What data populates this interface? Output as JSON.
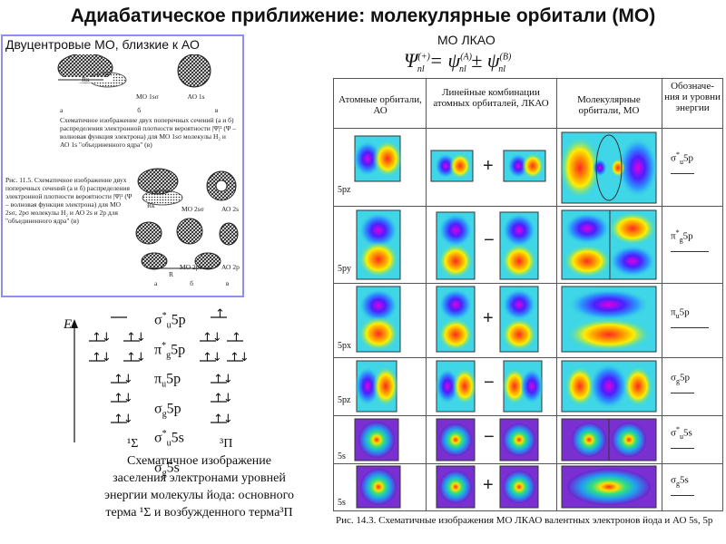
{
  "title": "Адиабатическое приближение: молекулярные орбитали (МО)",
  "formula_label": "МО ЛКАО",
  "formula": {
    "lhs": "Ψ",
    "lhs_sup": "(+)",
    "lhs_sub": "nl",
    "eq": " = ",
    "t1": "ψ",
    "t1_sup": "(A)",
    "t1_sub": "nl",
    "pm": " ± ",
    "t2": "ψ",
    "t2_sup": "(B)",
    "t2_sub": "nl"
  },
  "left_box": {
    "title": "Двуцентровые МО, близкие к АО",
    "fig1_labels": [
      "МО 1sσ",
      "АО 1s"
    ],
    "fig1_letters": [
      "а",
      "б",
      "в"
    ],
    "fig1_caption": "Схематичное изображение двух поперечных сечений (а и б) распределения электронной плотности вероятности |Ψ|² (Ψ – волновая функция электрона) для МО 1sσ молекулы H₂ и АО 1s \"объединенного ядра\" (в)",
    "fig2_caption": "Рис. 11.5. Схематичное изображение двух поперечных сечений (а и б) распределения электронной плотности вероятности |Ψ|² (Ψ – волновая функция электрона) для МО 2sσ, 2pσ молекулы H₂ и АО 2s и 2p для \"объединенного ядра\" (в)",
    "fig2_labels": [
      "МО 2sσ",
      "АО 2s",
      "МО 2pσ",
      "АО 2p"
    ],
    "fig2_letters": [
      "а",
      "б",
      "в"
    ],
    "rk1": "Rк",
    "rk2": "Rк",
    "r": "R"
  },
  "energy_diagram": {
    "axis_label": "E",
    "levels": [
      "σu*5p",
      "πg*5p",
      "πu5p",
      "σg5p",
      "σu*5s",
      "σg5s"
    ],
    "levels_display": [
      {
        "main": "σ",
        "sup": "*",
        "sub": "u",
        "rest": "5p"
      },
      {
        "main": "π",
        "sup": "*",
        "sub": "g",
        "rest": "5p"
      },
      {
        "main": "π",
        "sup": "",
        "sub": "u",
        "rest": "5p"
      },
      {
        "main": "σ",
        "sup": "",
        "sub": "g",
        "rest": "5p"
      },
      {
        "main": "σ",
        "sup": "*",
        "sub": "u",
        "rest": "5s"
      },
      {
        "main": "σ",
        "sup": "",
        "sub": "g",
        "rest": "5s"
      }
    ],
    "term_left": "¹Σ",
    "term_right": "³Π",
    "caption": "Схематичное изображение заселения электронами уровней энергии молекулы йода: основного терма ¹Σ и возбужденного терма³П"
  },
  "table": {
    "headers": [
      "Атомные орбитали, АО",
      "Линейные комбинации атомных орбиталей, ЛКАО",
      "Молекулярные орбитали, МО",
      "Обозначе-ния и уровни энергии"
    ],
    "rows": [
      {
        "label": "5pz",
        "op": "+",
        "level": "σu*5p",
        "level_main": "σ",
        "level_sup": "*",
        "level_sub": "u",
        "level_rest": "5p"
      },
      {
        "label": "5py",
        "op": "−",
        "level": "πg*5p",
        "level_main": "π",
        "level_sup": "*",
        "level_sub": "g",
        "level_rest": "5p"
      },
      {
        "label": "5px",
        "op": "+",
        "level": "πu5p",
        "level_main": "π",
        "level_sup": "",
        "level_sub": "u",
        "level_rest": "5p"
      },
      {
        "label": "5pz",
        "op": "−",
        "level": "σg5p",
        "level_main": "σ",
        "level_sup": "",
        "level_sub": "g",
        "level_rest": "5p"
      },
      {
        "label": "5s",
        "op": "−",
        "level": "σu*5s",
        "level_main": "σ",
        "level_sup": "*",
        "level_sub": "u",
        "level_rest": "5s"
      },
      {
        "label": "5s",
        "op": "+",
        "level": "σg5s",
        "level_main": "σ",
        "level_sup": "",
        "level_sub": "g",
        "level_rest": "5s"
      }
    ],
    "caption": "Рис. 14.3. Схематичные изображения МО ЛКАО валентных электронов йода и АО 5s, 5p"
  },
  "colors": {
    "frame": "#8a8ff0",
    "bg_field": "#3fd6e8",
    "s_field": "#7a2fd0"
  }
}
